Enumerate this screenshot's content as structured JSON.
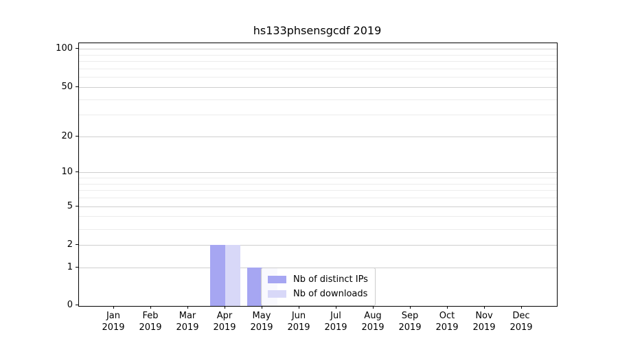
{
  "chart_data": {
    "type": "bar",
    "title": "hs133phsensgcdf 2019",
    "categories": [
      "Jan",
      "Feb",
      "Mar",
      "Apr",
      "May",
      "Jun",
      "Jul",
      "Aug",
      "Sep",
      "Oct",
      "Nov",
      "Dec"
    ],
    "x_year_label": "2019",
    "series": [
      {
        "name": "Nb of distinct IPs",
        "color": "#a6a6f2",
        "values": [
          0,
          0,
          0,
          2,
          1,
          0,
          0,
          0,
          0,
          0,
          0,
          0
        ]
      },
      {
        "name": "Nb of downloads",
        "color": "#d8d8f8",
        "values": [
          0,
          0,
          0,
          2,
          1,
          0,
          0,
          0,
          0,
          0,
          0,
          0
        ]
      }
    ],
    "yscale": "log1p",
    "ylim": [
      0,
      111
    ],
    "xlabel": "",
    "ylabel": "",
    "major_ticks": [
      0,
      1,
      2,
      5,
      10,
      20,
      50,
      100
    ],
    "minor_ticks": [
      3,
      4,
      6,
      7,
      8,
      9,
      30,
      40,
      60,
      70,
      80,
      90
    ],
    "grid": "horizontal",
    "legend_position": "inside-bottom-center"
  },
  "colors": {
    "grid_major": "#cfcfcf",
    "grid_minor": "#ececec",
    "spine": "#000000",
    "background": "#ffffff"
  }
}
